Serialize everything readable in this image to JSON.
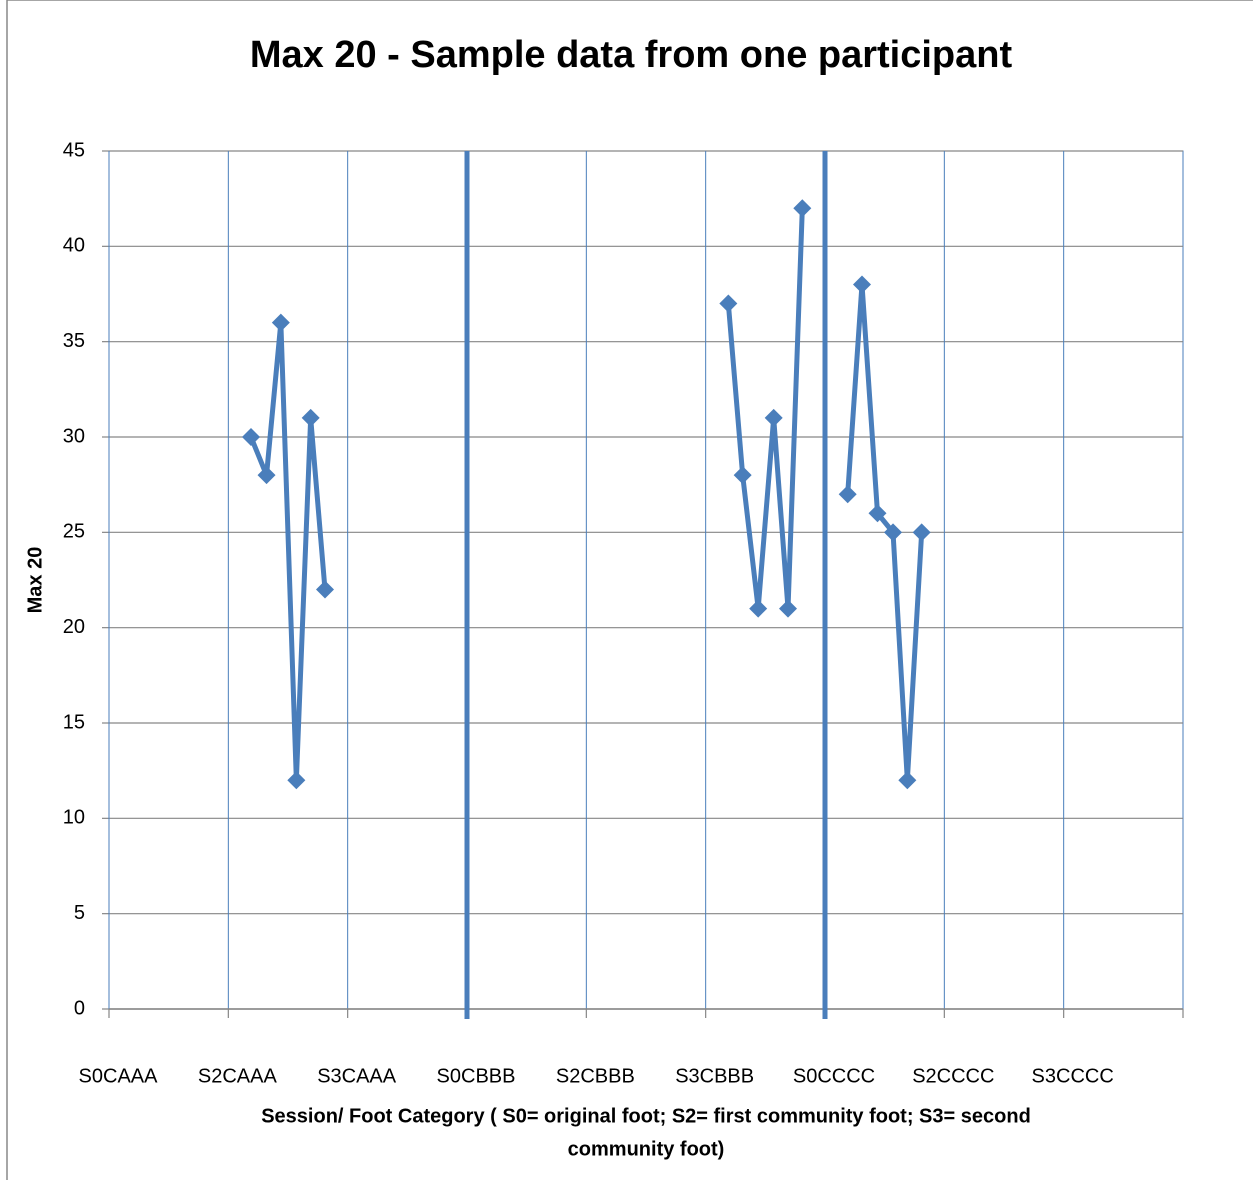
{
  "chart_data": {
    "type": "line",
    "title": "Max 20 - Sample data from one participant",
    "y_label": "Max 20",
    "x_label_lines": [
      "Session/ Foot  Category ( S0= original foot; S2= first community foot; S3= second",
      "community foot)"
    ],
    "xlim": [
      0,
      9
    ],
    "xticks": [
      {
        "value": 0,
        "label": "S0CAAA"
      },
      {
        "value": 1,
        "label": "S2CAAA"
      },
      {
        "value": 2,
        "label": "S3CAAA"
      },
      {
        "value": 3,
        "label": "S0CBBB"
      },
      {
        "value": 4,
        "label": "S2CBBB"
      },
      {
        "value": 5,
        "label": "S3CBBB"
      },
      {
        "value": 6,
        "label": "S0CCCC"
      },
      {
        "value": 7,
        "label": "S2CCCC"
      },
      {
        "value": 8,
        "label": "S3CCCC"
      }
    ],
    "x_separators": [
      3,
      6
    ],
    "ylim": [
      0,
      45
    ],
    "yticks": [
      0,
      5,
      10,
      15,
      20,
      25,
      30,
      35,
      40,
      45
    ],
    "grid": true,
    "series": [
      {
        "color": "#4a7ebb",
        "x": [
          1.19,
          1.32,
          1.44,
          1.57,
          1.69,
          1.81,
          null,
          5.19,
          5.31,
          5.44,
          5.57,
          5.69,
          5.81,
          null,
          6.19,
          6.31,
          6.44,
          6.57,
          6.69,
          6.81
        ],
        "values": [
          30,
          28,
          36,
          12,
          31,
          22,
          null,
          37,
          28,
          21,
          31,
          21,
          42,
          null,
          27,
          38,
          26,
          25,
          12,
          25
        ]
      }
    ]
  }
}
